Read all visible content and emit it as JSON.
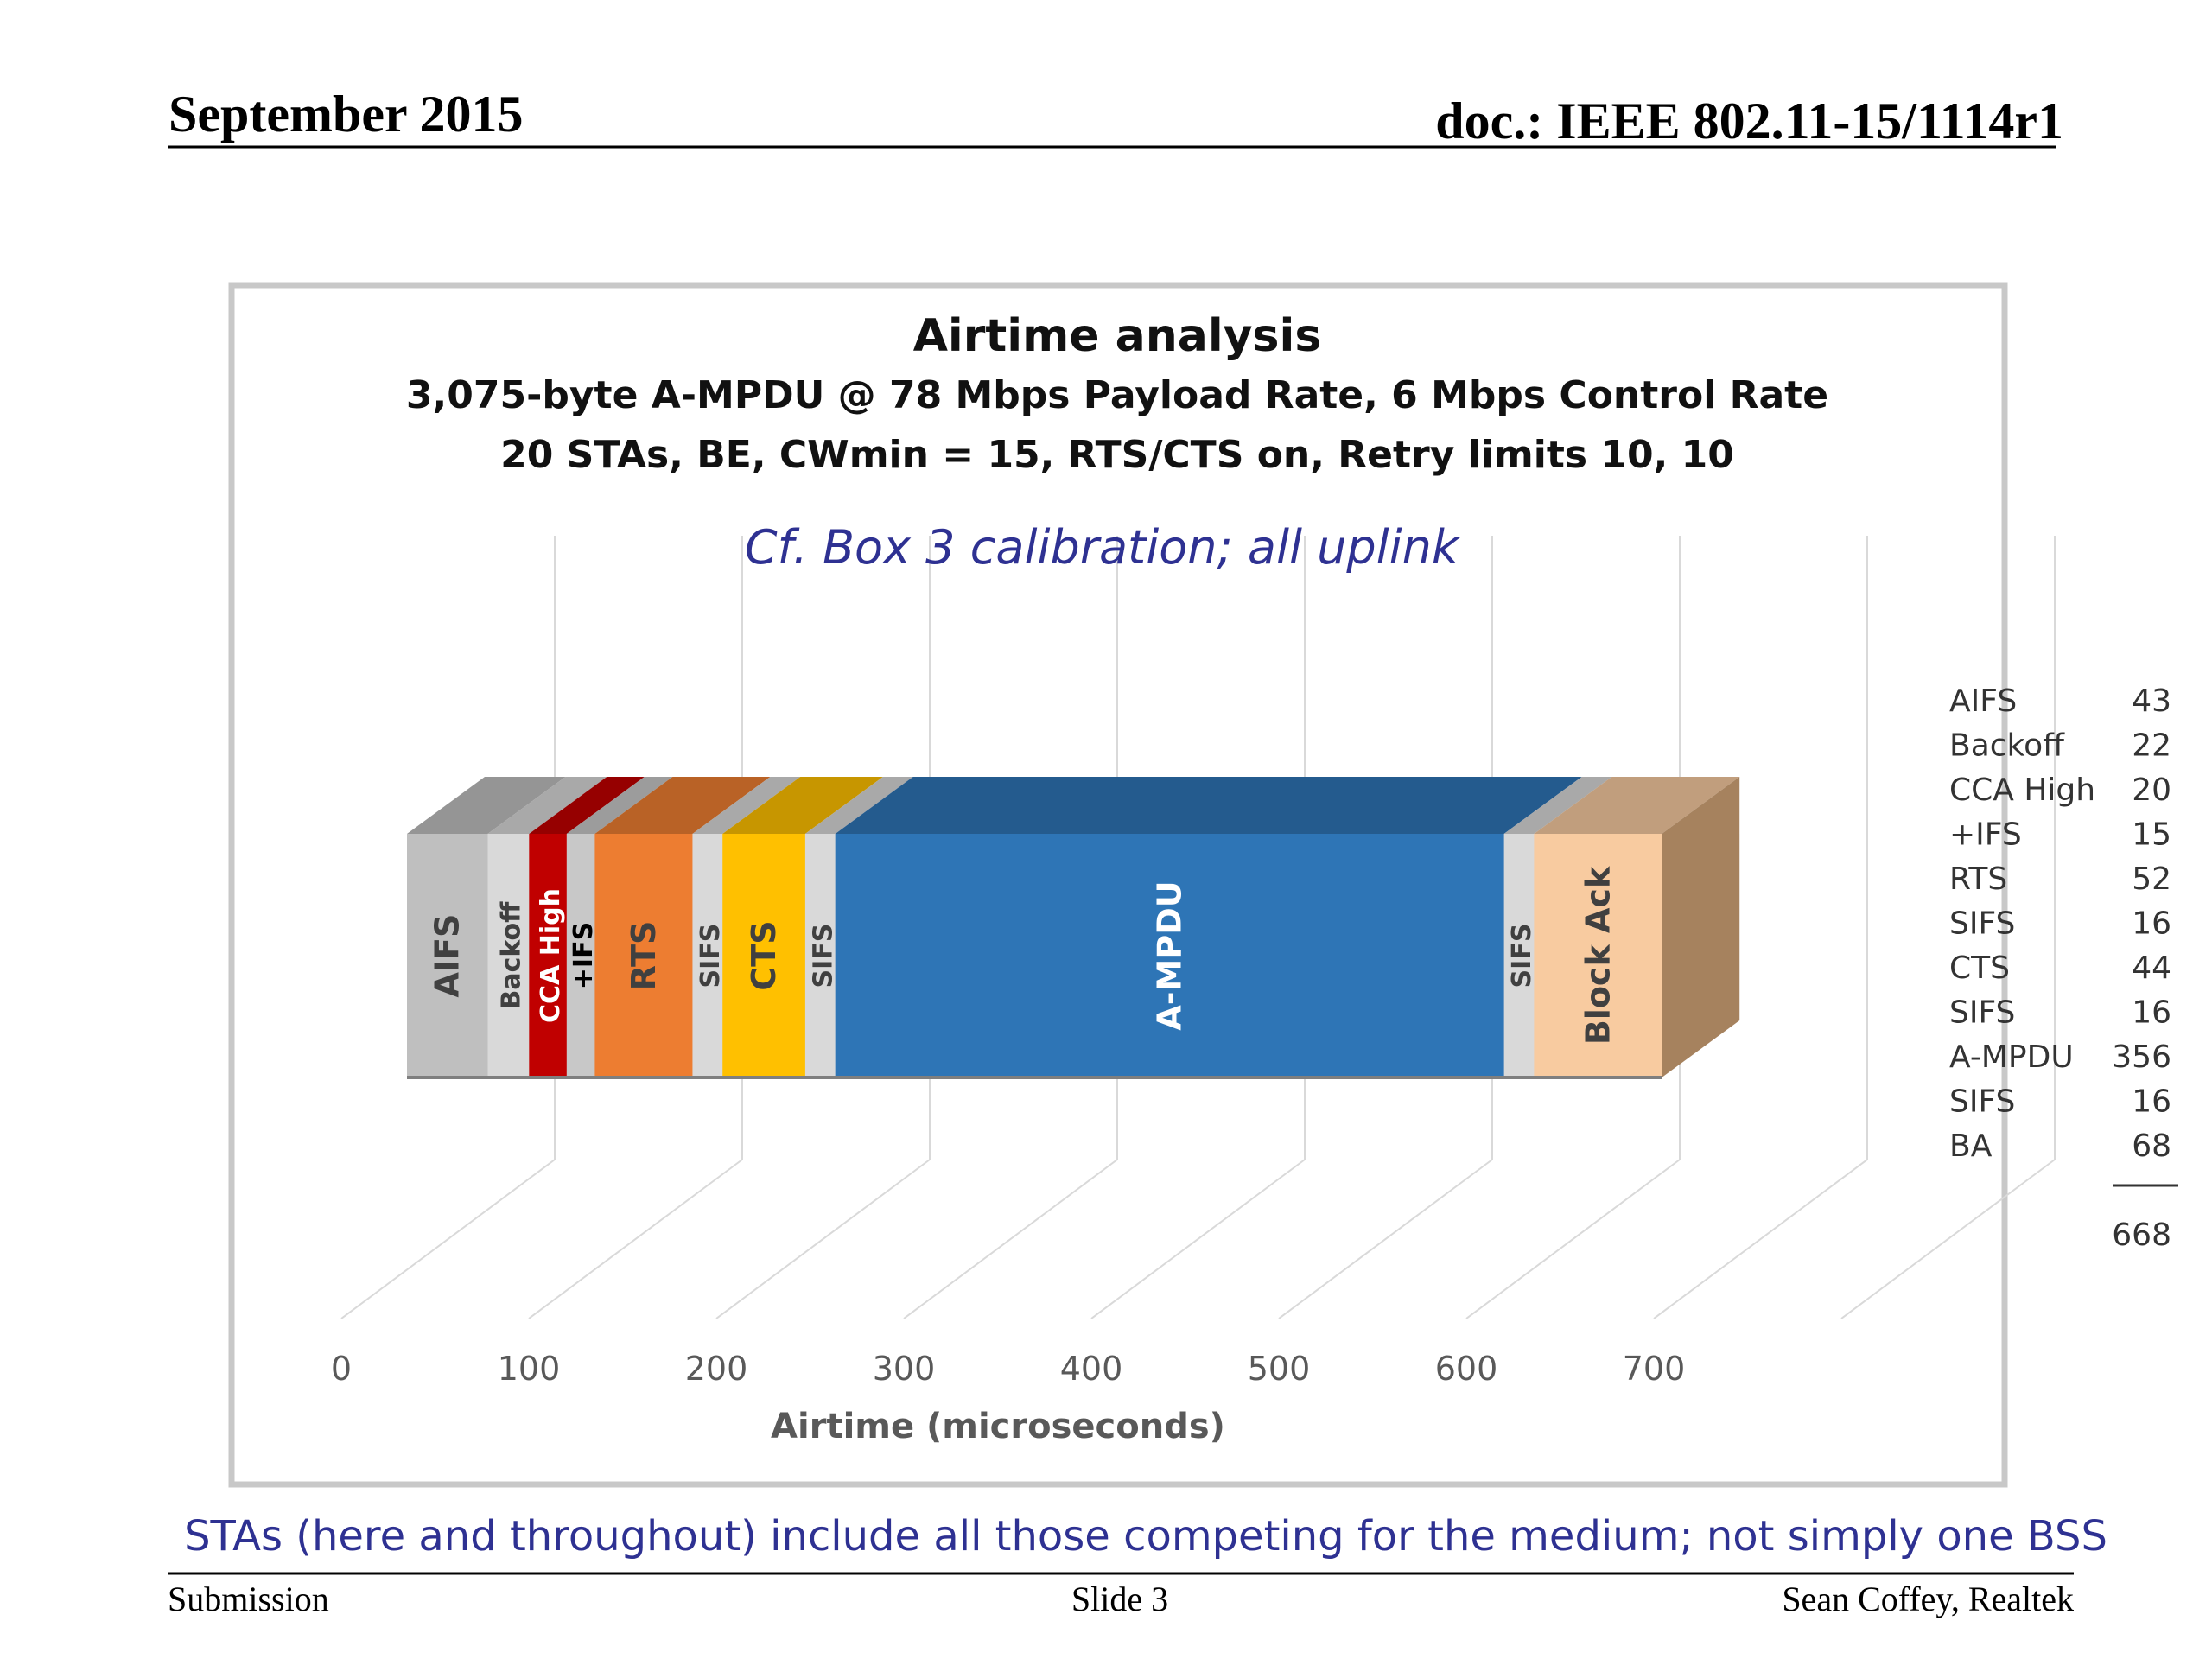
{
  "header": {
    "date": "September 2015",
    "doc": "doc.: IEEE 802.11-15/1114r1"
  },
  "footer": {
    "note": "STAs (here and throughout) include all those competing for the medium; not simply one BSS",
    "left": "Submission",
    "center": "Slide 3",
    "right": "Sean Coffey, Realtek"
  },
  "chart_data": {
    "type": "bar",
    "orientation": "horizontal-stacked-3d",
    "title": "Airtime analysis",
    "subtitle_lines": [
      "3,075-byte A-MPDU @ 78 Mbps Payload Rate, 6 Mbps Control Rate",
      "20 STAs, BE, CWmin = 15, RTS/CTS on, Retry limits 10, 10"
    ],
    "annotation": "Cf. Box 3 calibration; all uplink",
    "xlabel": "Airtime (microseconds)",
    "xlim": [
      0,
      700
    ],
    "xticks": [
      "0",
      "100",
      "200",
      "300",
      "400",
      "500",
      "600",
      "700"
    ],
    "grid": true,
    "segments": [
      {
        "label": "AIFS",
        "value": 43,
        "color": "#bfbfbf",
        "text_color": "#404040"
      },
      {
        "label": "Backoff",
        "value": 22,
        "color": "#d9d9d9",
        "text_color": "#404040"
      },
      {
        "label": "CCA High",
        "value": 20,
        "color": "#c00000",
        "text_color": "#ffffff"
      },
      {
        "label": "+IFS",
        "value": 15,
        "color": "#c8c8c8",
        "text_color": "#000000"
      },
      {
        "label": "RTS",
        "value": 52,
        "color": "#ed7d31",
        "text_color": "#404040"
      },
      {
        "label": "SIFS",
        "value": 16,
        "color": "#d9d9d9",
        "text_color": "#404040"
      },
      {
        "label": "CTS",
        "value": 44,
        "color": "#ffc000",
        "text_color": "#404040"
      },
      {
        "label": "SIFS",
        "value": 16,
        "color": "#d9d9d9",
        "text_color": "#404040"
      },
      {
        "label": "A-MPDU",
        "value": 356,
        "color": "#2e75b6",
        "text_color": "#ffffff"
      },
      {
        "label": "SIFS",
        "value": 16,
        "color": "#d9d9d9",
        "text_color": "#404040"
      },
      {
        "label": "Block Ack",
        "value": 68,
        "color": "#f8cba0",
        "text_color": "#404040"
      }
    ],
    "side_color": "#a6825e",
    "table": {
      "rows": [
        {
          "label": "AIFS",
          "value": "43"
        },
        {
          "label": "Backoff",
          "value": "22"
        },
        {
          "label": "CCA High",
          "value": "20"
        },
        {
          "label": "+IFS",
          "value": "15"
        },
        {
          "label": "RTS",
          "value": "52"
        },
        {
          "label": "SIFS",
          "value": "16"
        },
        {
          "label": "CTS",
          "value": "44"
        },
        {
          "label": "SIFS",
          "value": "16"
        },
        {
          "label": "A-MPDU",
          "value": "356"
        },
        {
          "label": "SIFS",
          "value": "16"
        },
        {
          "label": "BA",
          "value": "68"
        }
      ],
      "total": "668"
    }
  }
}
